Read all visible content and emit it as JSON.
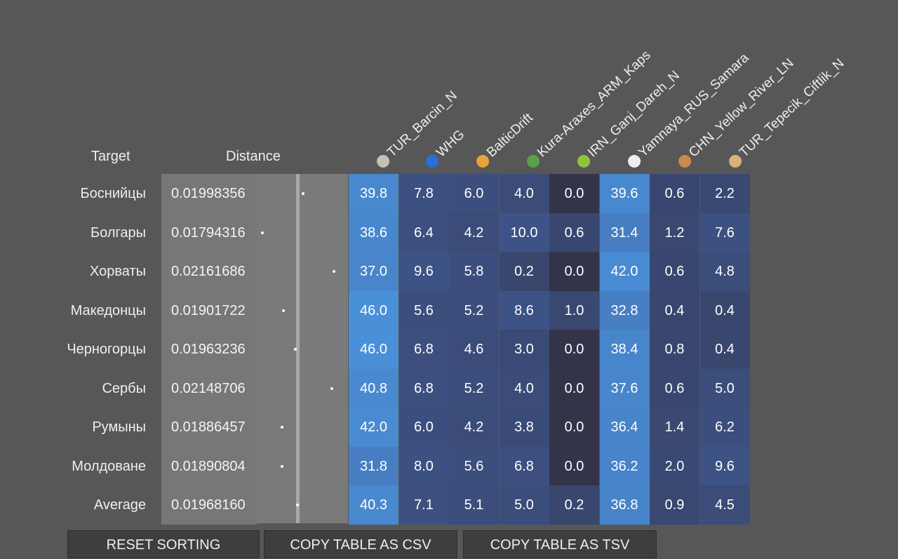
{
  "header": {
    "target": "Target",
    "distance": "Distance"
  },
  "columns": [
    {
      "label": "TUR_Barcin_N",
      "icon": "coffee-cup-icon",
      "color": "#c9c0b3"
    },
    {
      "label": "WHG",
      "icon": "estonia-flag-icon",
      "color": "#2b6ed9"
    },
    {
      "label": "BalticDrift",
      "icon": "beer-mugs-icon",
      "color": "#e8a23a"
    },
    {
      "label": "Kura-Araxes_ARM_Kaps",
      "icon": "landscape-icon",
      "color": "#5aa04a"
    },
    {
      "label": "IRN_Ganj_Dareh_N",
      "icon": "avocado-icon",
      "color": "#8fc43a"
    },
    {
      "label": "Yamnaya_RUS_Samara",
      "icon": "milk-glass-icon",
      "color": "#eeeeee"
    },
    {
      "label": "CHN_Yellow_River_LN",
      "icon": "rolling-pin-icon",
      "color": "#c98a4a"
    },
    {
      "label": "TUR_Tepecik_Ciftlik_N",
      "icon": "bread-icon",
      "color": "#d9b27a"
    }
  ],
  "rows": [
    {
      "name": "Боснийцы",
      "distance": "0.01998356",
      "dot": 0.02,
      "values": [
        "39.8",
        "7.8",
        "6.0",
        "4.0",
        "0.0",
        "39.6",
        "0.6",
        "2.2"
      ]
    },
    {
      "name": "Болгары",
      "distance": "0.01794316",
      "dot": 0.0179,
      "values": [
        "38.6",
        "6.4",
        "4.2",
        "10.0",
        "0.6",
        "31.4",
        "1.2",
        "7.6"
      ]
    },
    {
      "name": "Хорваты",
      "distance": "0.02161686",
      "dot": 0.0216,
      "values": [
        "37.0",
        "9.6",
        "5.8",
        "0.2",
        "0.0",
        "42.0",
        "0.6",
        "4.8"
      ]
    },
    {
      "name": "Македонцы",
      "distance": "0.01901722",
      "dot": 0.019,
      "values": [
        "46.0",
        "5.6",
        "5.2",
        "8.6",
        "1.0",
        "32.8",
        "0.4",
        "0.4"
      ]
    },
    {
      "name": "Черногорцы",
      "distance": "0.01963236",
      "dot": 0.0196,
      "values": [
        "46.0",
        "6.8",
        "4.6",
        "3.0",
        "0.0",
        "38.4",
        "0.8",
        "0.4"
      ]
    },
    {
      "name": "Сербы",
      "distance": "0.02148706",
      "dot": 0.0215,
      "values": [
        "40.8",
        "6.8",
        "5.2",
        "4.0",
        "0.0",
        "37.6",
        "0.6",
        "5.0"
      ]
    },
    {
      "name": "Румыны",
      "distance": "0.01886457",
      "dot": 0.0189,
      "values": [
        "42.0",
        "6.0",
        "4.2",
        "3.8",
        "0.0",
        "36.4",
        "1.4",
        "6.2"
      ]
    },
    {
      "name": "Молдоване",
      "distance": "0.01890804",
      "dot": 0.0189,
      "values": [
        "31.8",
        "8.0",
        "5.6",
        "6.8",
        "0.0",
        "36.2",
        "2.0",
        "9.6"
      ]
    },
    {
      "name": "Average",
      "distance": "0.01968160",
      "dot": 0.0197,
      "values": [
        "40.3",
        "7.1",
        "5.1",
        "5.0",
        "0.2",
        "36.8",
        "0.9",
        "4.5"
      ]
    }
  ],
  "buttons": {
    "reset": "RESET SORTING",
    "csv": "COPY TABLE AS CSV",
    "tsv": "COPY TABLE AS TSV"
  },
  "colors": {
    "background": "#575757",
    "low": "#33334a",
    "high": "#4a90d9"
  }
}
